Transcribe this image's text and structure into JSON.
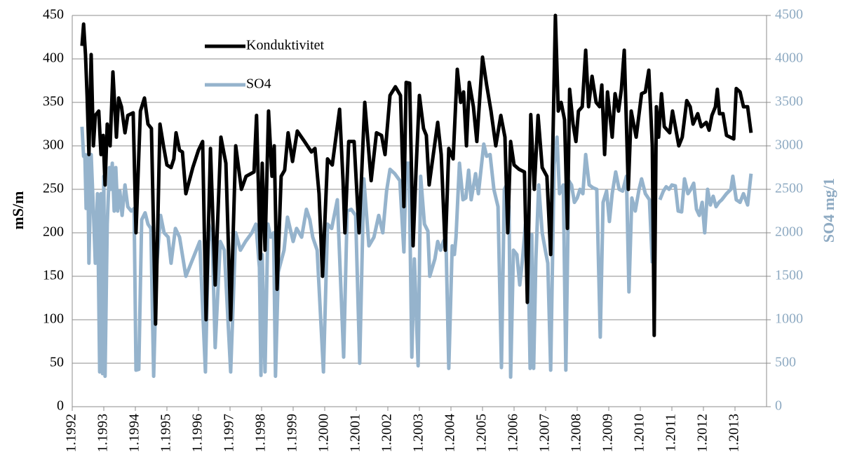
{
  "chart_data": {
    "type": "line",
    "y_label": "mS/m",
    "y2_label": "SO4 mg/1",
    "xlim": [
      1992,
      2014
    ],
    "xticks": [
      {
        "value": 1992,
        "label": "1.1992"
      },
      {
        "value": 1993,
        "label": "1.1993"
      },
      {
        "value": 1994,
        "label": "1.1994"
      },
      {
        "value": 1995,
        "label": "1.1995"
      },
      {
        "value": 1996,
        "label": "1.1996"
      },
      {
        "value": 1997,
        "label": "1.1997"
      },
      {
        "value": 1998,
        "label": "1.1998"
      },
      {
        "value": 1999,
        "label": "1.1999"
      },
      {
        "value": 2000,
        "label": "1.2000"
      },
      {
        "value": 2001,
        "label": "1.2001"
      },
      {
        "value": 2002,
        "label": "1.2002"
      },
      {
        "value": 2003,
        "label": "1.2003"
      },
      {
        "value": 2004,
        "label": "1.2004"
      },
      {
        "value": 2005,
        "label": "1.2005"
      },
      {
        "value": 2006,
        "label": "1.2006"
      },
      {
        "value": 2007,
        "label": "1.2007"
      },
      {
        "value": 2008,
        "label": "1.2008"
      },
      {
        "value": 2009,
        "label": "1.2009"
      },
      {
        "value": 2010,
        "label": "1.2010"
      },
      {
        "value": 2011,
        "label": "1.2011"
      },
      {
        "value": 2012,
        "label": "1.2012"
      },
      {
        "value": 2013,
        "label": "1.2013"
      }
    ],
    "ylim": [
      0,
      450
    ],
    "yticks": [
      0,
      50,
      100,
      150,
      200,
      250,
      300,
      350,
      400,
      450
    ],
    "y2lim": [
      0,
      4500
    ],
    "y2ticks": [
      0,
      500,
      1000,
      1500,
      2000,
      2500,
      3000,
      3500,
      4000,
      4500
    ],
    "y2_color": "#8eaac2",
    "grid": true,
    "series": [
      {
        "name": "Konduktivitet",
        "color": "#000000",
        "x": [
          1992.31,
          1992.36,
          1992.42,
          1992.47,
          1992.53,
          1992.6,
          1992.67,
          1992.73,
          1992.84,
          1992.91,
          1992.98,
          1993.04,
          1993.11,
          1993.2,
          1993.29,
          1993.4,
          1993.47,
          1993.56,
          1993.67,
          1993.76,
          1993.93,
          1994.02,
          1994.16,
          1994.29,
          1994.4,
          1994.51,
          1994.64,
          1994.78,
          1994.89,
          1995.0,
          1995.13,
          1995.22,
          1995.29,
          1995.4,
          1995.49,
          1995.6,
          1995.82,
          1996.0,
          1996.13,
          1996.24,
          1996.38,
          1996.53,
          1996.71,
          1996.87,
          1997.02,
          1997.18,
          1997.36,
          1997.51,
          1997.76,
          1997.84,
          1997.96,
          1998.02,
          1998.11,
          1998.22,
          1998.33,
          1998.4,
          1998.49,
          1998.62,
          1998.73,
          1998.84,
          1998.98,
          1999.13,
          1999.36,
          1999.58,
          1999.69,
          1999.82,
          1999.93,
          2000.09,
          2000.24,
          2000.47,
          2000.58,
          2000.64,
          2000.76,
          2000.93,
          2001.09,
          2001.27,
          2001.47,
          2001.64,
          2001.8,
          2001.91,
          2002.07,
          2002.24,
          2002.4,
          2002.51,
          2002.58,
          2002.69,
          2002.8,
          2002.89,
          2003.0,
          2003.13,
          2003.22,
          2003.31,
          2003.58,
          2003.69,
          2003.82,
          2003.93,
          2004.07,
          2004.2,
          2004.31,
          2004.4,
          2004.49,
          2004.58,
          2004.71,
          2004.82,
          2005.0,
          2005.13,
          2005.27,
          2005.42,
          2005.58,
          2005.71,
          2005.8,
          2005.89,
          2006.0,
          2006.16,
          2006.33,
          2006.42,
          2006.53,
          2006.64,
          2006.76,
          2006.89,
          2007.04,
          2007.16,
          2007.31,
          2007.4,
          2007.49,
          2007.6,
          2007.69,
          2007.76,
          2007.87,
          2007.96,
          2008.04,
          2008.16,
          2008.27,
          2008.36,
          2008.47,
          2008.6,
          2008.71,
          2008.78,
          2008.87,
          2008.96,
          2009.11,
          2009.2,
          2009.31,
          2009.4,
          2009.49,
          2009.62,
          2009.71,
          2009.87,
          2010.04,
          2010.16,
          2010.27,
          2010.38,
          2010.44,
          2010.51,
          2010.58,
          2010.67,
          2010.76,
          2010.93,
          2011.02,
          2011.22,
          2011.33,
          2011.47,
          2011.58,
          2011.67,
          2011.82,
          2011.93,
          2012.09,
          2012.18,
          2012.27,
          2012.38,
          2012.44,
          2012.51,
          2012.62,
          2012.73,
          2012.96,
          2013.04,
          2013.16,
          2013.27,
          2013.4,
          2013.51
        ],
        "values": [
          415,
          440,
          405,
          357,
          290,
          405,
          300,
          335,
          340,
          290,
          312,
          255,
          325,
          300,
          385,
          310,
          355,
          345,
          315,
          335,
          338,
          200,
          340,
          355,
          325,
          320,
          95,
          325,
          300,
          278,
          275,
          285,
          315,
          295,
          293,
          245,
          275,
          295,
          305,
          100,
          297,
          140,
          310,
          280,
          100,
          300,
          250,
          265,
          270,
          335,
          170,
          280,
          180,
          340,
          265,
          300,
          135,
          265,
          272,
          315,
          282,
          317,
          305,
          293,
          297,
          245,
          150,
          285,
          278,
          342,
          260,
          200,
          305,
          305,
          200,
          350,
          260,
          315,
          312,
          290,
          358,
          368,
          358,
          230,
          373,
          372,
          185,
          270,
          358,
          320,
          312,
          255,
          327,
          290,
          180,
          297,
          285,
          388,
          350,
          362,
          300,
          373,
          345,
          305,
          402,
          370,
          340,
          300,
          335,
          310,
          200,
          305,
          278,
          273,
          270,
          120,
          336,
          250,
          335,
          275,
          265,
          175,
          450,
          340,
          350,
          330,
          205,
          365,
          325,
          305,
          340,
          345,
          410,
          345,
          380,
          350,
          345,
          370,
          290,
          362,
          310,
          360,
          340,
          365,
          410,
          250,
          340,
          310,
          360,
          362,
          387,
          300,
          82,
          345,
          310,
          360,
          322,
          315,
          340,
          300,
          310,
          352,
          345,
          325,
          337,
          322,
          327,
          318,
          335,
          345,
          365,
          337,
          337,
          312,
          308,
          366,
          362,
          345,
          345,
          315
        ]
      },
      {
        "name": "SO4",
        "color": "#95b3cc",
        "axis": "y2",
        "x": [
          1992.31,
          1992.36,
          1992.4,
          1992.44,
          1992.49,
          1992.53,
          1992.6,
          1992.67,
          1992.73,
          1992.8,
          1992.87,
          1992.91,
          1992.96,
          1993.0,
          1993.04,
          1993.11,
          1993.18,
          1993.22,
          1993.27,
          1993.33,
          1993.38,
          1993.44,
          1993.51,
          1993.58,
          1993.67,
          1993.76,
          1993.87,
          1993.96,
          1994.02,
          1994.11,
          1994.2,
          1994.31,
          1994.4,
          1994.49,
          1994.58,
          1994.67,
          1994.8,
          1994.91,
          1995.04,
          1995.13,
          1995.27,
          1995.4,
          1995.6,
          1995.82,
          1996.04,
          1996.22,
          1996.33,
          1996.44,
          1996.53,
          1996.69,
          1996.82,
          1997.02,
          1997.18,
          1997.33,
          1997.49,
          1997.69,
          1997.82,
          1997.93,
          1997.98,
          1998.02,
          1998.11,
          1998.2,
          1998.29,
          1998.38,
          1998.44,
          1998.53,
          1998.71,
          1998.82,
          1999.0,
          1999.11,
          1999.27,
          1999.42,
          1999.53,
          1999.62,
          1999.76,
          1999.96,
          2000.09,
          2000.22,
          2000.4,
          2000.6,
          2000.71,
          2000.84,
          2000.98,
          2001.11,
          2001.24,
          2001.4,
          2001.56,
          2001.71,
          2001.84,
          2001.96,
          2002.07,
          2002.22,
          2002.38,
          2002.51,
          2002.58,
          2002.67,
          2002.76,
          2002.84,
          2002.96,
          2003.04,
          2003.16,
          2003.27,
          2003.33,
          2003.49,
          2003.58,
          2003.67,
          2003.76,
          2003.84,
          2003.93,
          2004.04,
          2004.11,
          2004.16,
          2004.27,
          2004.38,
          2004.47,
          2004.56,
          2004.64,
          2004.78,
          2004.87,
          2005.04,
          2005.13,
          2005.24,
          2005.36,
          2005.49,
          2005.6,
          2005.69,
          2005.76,
          2005.84,
          2005.89,
          2005.98,
          2006.09,
          2006.18,
          2006.27,
          2006.36,
          2006.44,
          2006.51,
          2006.56,
          2006.62,
          2006.69,
          2006.78,
          2006.89,
          2007.0,
          2007.07,
          2007.16,
          2007.27,
          2007.36,
          2007.44,
          2007.56,
          2007.64,
          2007.73,
          2007.82,
          2007.91,
          2008.0,
          2008.09,
          2008.18,
          2008.27,
          2008.38,
          2008.49,
          2008.62,
          2008.73,
          2008.82,
          2008.93,
          2009.02,
          2009.11,
          2009.22,
          2009.33,
          2009.44,
          2009.56,
          2009.64,
          2009.73,
          2009.84,
          2009.96,
          2010.04,
          2010.16,
          2010.29,
          2010.38,
          2010.45,
          2010.62,
          2010.73,
          2010.82,
          2010.91,
          2011.0,
          2011.11,
          2011.2,
          2011.31,
          2011.4,
          2011.51,
          2011.6,
          2011.69,
          2011.78,
          2011.87,
          2011.96,
          2012.04,
          2012.13,
          2012.22,
          2012.31,
          2012.4,
          2012.49,
          2012.58,
          2012.73,
          2012.87,
          2012.93,
          2013.04,
          2013.16,
          2013.27,
          2013.4,
          2013.51
        ],
        "values": [
          3220,
          2880,
          2900,
          2280,
          2900,
          1650,
          2900,
          2250,
          1650,
          2450,
          400,
          2450,
          380,
          2650,
          350,
          2100,
          2750,
          2500,
          2800,
          2250,
          2750,
          2250,
          2480,
          2200,
          2550,
          2300,
          2250,
          2280,
          420,
          430,
          2150,
          2230,
          2100,
          2050,
          350,
          1600,
          2200,
          2000,
          1950,
          1650,
          2050,
          1950,
          1500,
          1700,
          1900,
          400,
          2100,
          1900,
          680,
          1900,
          1800,
          400,
          2000,
          1800,
          1900,
          2000,
          2100,
          1600,
          360,
          1750,
          400,
          2100,
          1950,
          2000,
          350,
          1550,
          1800,
          2180,
          1900,
          2050,
          1950,
          2270,
          2150,
          1950,
          1800,
          400,
          2100,
          2050,
          2380,
          570,
          2250,
          2270,
          2200,
          500,
          2620,
          1850,
          1950,
          2200,
          2000,
          2480,
          2730,
          2680,
          2600,
          1780,
          2800,
          2800,
          570,
          1700,
          470,
          2650,
          2100,
          2020,
          1500,
          1700,
          1900,
          1800,
          1900,
          1950,
          440,
          1850,
          1750,
          1950,
          2800,
          2380,
          2400,
          2720,
          2380,
          2680,
          2450,
          3020,
          2880,
          2900,
          2500,
          2300,
          450,
          2500,
          2550,
          2300,
          340,
          1800,
          1750,
          1400,
          1700,
          2100,
          1800,
          440,
          1980,
          440,
          1700,
          2550,
          2000,
          1780,
          1650,
          420,
          2780,
          3100,
          2450,
          2550,
          420,
          2600,
          2550,
          2350,
          2400,
          2500,
          2450,
          2900,
          2550,
          2520,
          2500,
          800,
          2350,
          2480,
          2130,
          2450,
          2700,
          2500,
          2480,
          2650,
          1320,
          2400,
          2250,
          2500,
          2620,
          2450,
          2380,
          1650,
          null,
          2380,
          2480,
          2530,
          2500,
          2550,
          2540,
          2250,
          2240,
          2620,
          2450,
          2500,
          2570,
          2270,
          2200,
          2350,
          2000,
          2500,
          2320,
          2420,
          2300,
          2350,
          2380,
          2450,
          2500,
          2650,
          2380,
          2350,
          2450,
          2320,
          2680
        ]
      }
    ]
  }
}
